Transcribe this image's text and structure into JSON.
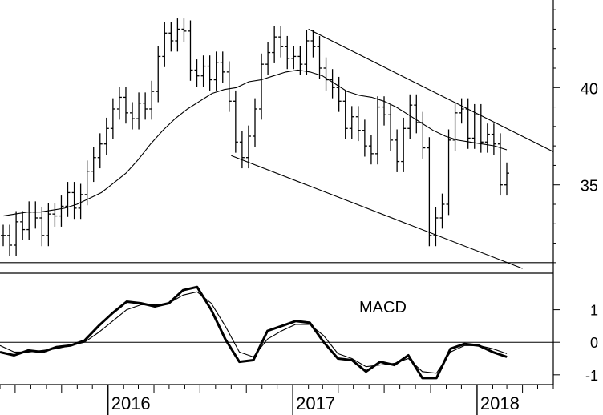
{
  "chart_data": [
    {
      "type": "ohlc",
      "panel": "price",
      "x_start": "2015-06",
      "x_end": "2018-06",
      "ylim": [
        30.5,
        44.5
      ],
      "y_ticks": [
        35,
        40
      ],
      "tick_labels": [
        "35",
        "40"
      ],
      "close": [
        32.4,
        31.9,
        33.1,
        32.7,
        33.6,
        33.3,
        32.4,
        33.5,
        33.4,
        33.9,
        34.6,
        33.8,
        34.5,
        35.7,
        36.4,
        37.1,
        37.9,
        38.9,
        39.5,
        38.7,
        38.4,
        39.2,
        38.9,
        39.8,
        41.6,
        42.8,
        42.4,
        43.0,
        42.9,
        40.9,
        40.6,
        41.1,
        40.4,
        41.3,
        40.8,
        39.3,
        37.2,
        36.4,
        37.5,
        38.9,
        41.2,
        41.8,
        42.6,
        42.1,
        41.5,
        41.6,
        41.2,
        42.4,
        42.1,
        41.0,
        40.4,
        40.0,
        39.3,
        37.9,
        38.5,
        37.8,
        37.0,
        36.6,
        39.0,
        38.6,
        37.3,
        36.2,
        37.9,
        39.1,
        38.2,
        36.9,
        32.4,
        33.3,
        34.0,
        37.3,
        38.7,
        38.9,
        37.4,
        38.6,
        37.2,
        37.6,
        37.1,
        35.0,
        35.6
      ]
    },
    {
      "type": "line",
      "panel": "price",
      "series": [
        {
          "name": "",
          "values": [
            33.4,
            33.5,
            33.6,
            33.6,
            33.7,
            33.8,
            34.0,
            34.3,
            34.6,
            35.1,
            35.6,
            36.3,
            37.1,
            37.8,
            38.4,
            38.9,
            39.3,
            39.7,
            39.9,
            40.0,
            40.3,
            40.4,
            40.6,
            40.8,
            40.9,
            40.8,
            40.6,
            40.2,
            39.8,
            39.6,
            39.5,
            39.3,
            39.0,
            38.6,
            38.2,
            37.8,
            37.5,
            37.3,
            37.2,
            37.1,
            37.0,
            36.8
          ]
        }
      ],
      "x_start_index": 0
    },
    {
      "type": "annotation_lines",
      "panel": "price",
      "lines": [
        {
          "name": "upper-trendline",
          "from": [
            "2017-02",
            43.0
          ],
          "to": [
            "2018-06",
            36.7
          ]
        },
        {
          "name": "lower-trendline",
          "from": [
            "2016-09",
            36.5
          ],
          "to": [
            "2018-04",
            30.7
          ]
        },
        {
          "name": "baseline",
          "from": [
            "2015-06",
            31.0
          ],
          "to": [
            "2018-06",
            31.0
          ]
        }
      ]
    },
    {
      "type": "line",
      "panel": "macd",
      "label": "MACD",
      "ylim": [
        -1.3,
        2.0
      ],
      "y_ticks": [
        1,
        0,
        -1
      ],
      "tick_labels": [
        "1",
        "0",
        "-1"
      ],
      "zero_line": true,
      "series": [
        {
          "name": "MACD",
          "values": [
            -0.3,
            -0.4,
            -0.25,
            -0.3,
            -0.15,
            -0.1,
            0.05,
            0.5,
            0.9,
            1.25,
            1.2,
            1.1,
            1.2,
            1.6,
            1.7,
            1.0,
            0.1,
            -0.6,
            -0.55,
            0.35,
            0.5,
            0.65,
            0.6,
            0.0,
            -0.5,
            -0.55,
            -0.9,
            -0.6,
            -0.7,
            -0.4,
            -1.1,
            -1.1,
            -0.2,
            -0.05,
            -0.1,
            -0.3,
            -0.45
          ]
        },
        {
          "name": "Signal",
          "values": [
            -0.1,
            -0.3,
            -0.3,
            -0.25,
            -0.2,
            -0.1,
            0.0,
            0.3,
            0.65,
            1.0,
            1.15,
            1.15,
            1.2,
            1.45,
            1.55,
            1.2,
            0.5,
            -0.3,
            -0.45,
            0.1,
            0.35,
            0.55,
            0.55,
            0.2,
            -0.35,
            -0.5,
            -0.75,
            -0.7,
            -0.65,
            -0.5,
            -0.9,
            -0.95,
            -0.3,
            -0.1,
            -0.1,
            -0.2,
            -0.35
          ]
        }
      ],
      "x_start": "2015-06",
      "x_end": "2018-03"
    }
  ],
  "x_axis": {
    "tick_labels": [
      "2016",
      "2017",
      "2018"
    ]
  }
}
